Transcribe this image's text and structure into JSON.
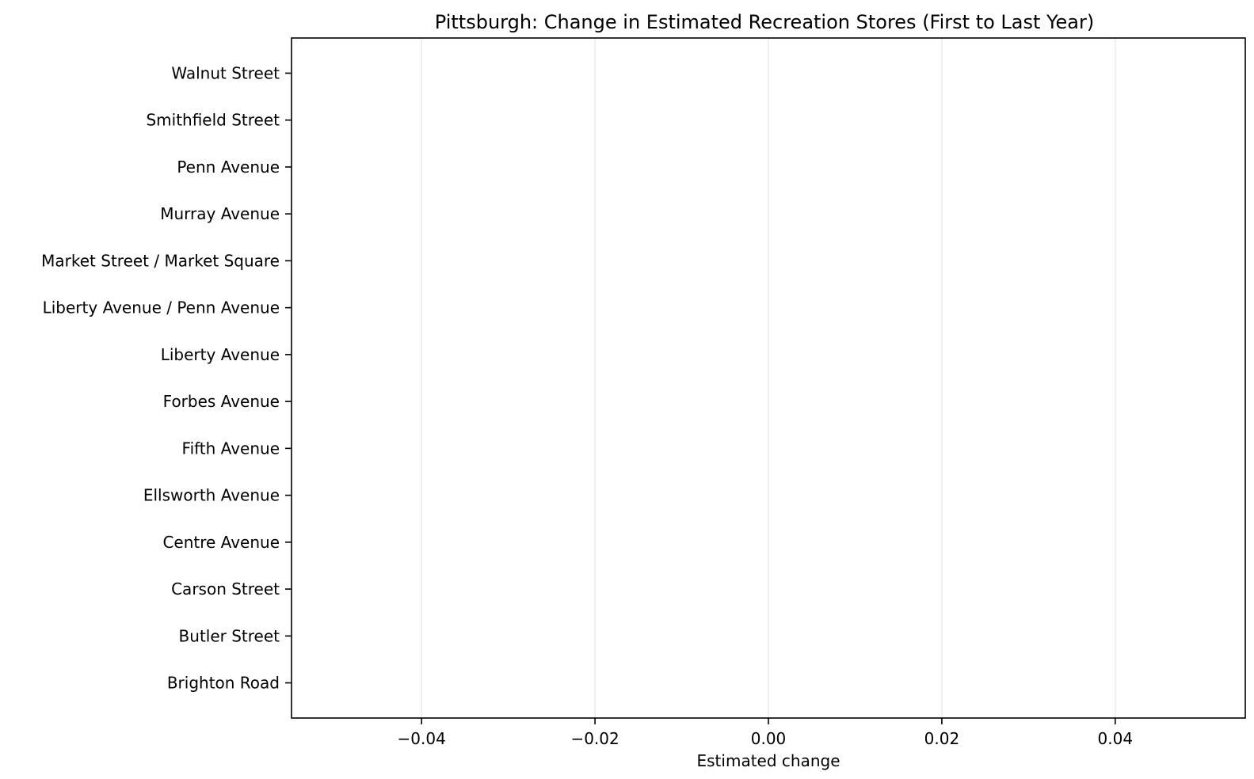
{
  "chart_data": {
    "type": "bar",
    "orientation": "horizontal",
    "title": "Pittsburgh: Change in Estimated Recreation Stores (First to Last Year)",
    "xlabel": "Estimated change",
    "ylabel": "",
    "xlim": [
      -0.055,
      0.055
    ],
    "xticks": [
      -0.04,
      -0.02,
      0.0,
      0.02,
      0.04
    ],
    "xtick_labels": [
      "−0.04",
      "−0.02",
      "0.00",
      "0.02",
      "0.04"
    ],
    "grid": "vertical",
    "categories": [
      "Brighton Road",
      "Butler Street",
      "Carson Street",
      "Centre Avenue",
      "Ellsworth Avenue",
      "Fifth Avenue",
      "Forbes Avenue",
      "Liberty Avenue",
      "Liberty Avenue / Penn Avenue",
      "Market Street / Market Square",
      "Murray Avenue",
      "Penn Avenue",
      "Smithfield Street",
      "Walnut Street"
    ],
    "values": [
      0,
      0,
      0,
      0,
      0,
      0,
      0,
      0,
      0,
      0,
      0,
      0,
      0,
      0
    ],
    "colors": {
      "grid": "#e6e6e6",
      "axis": "#000000",
      "bar": "#1f77b4"
    }
  }
}
